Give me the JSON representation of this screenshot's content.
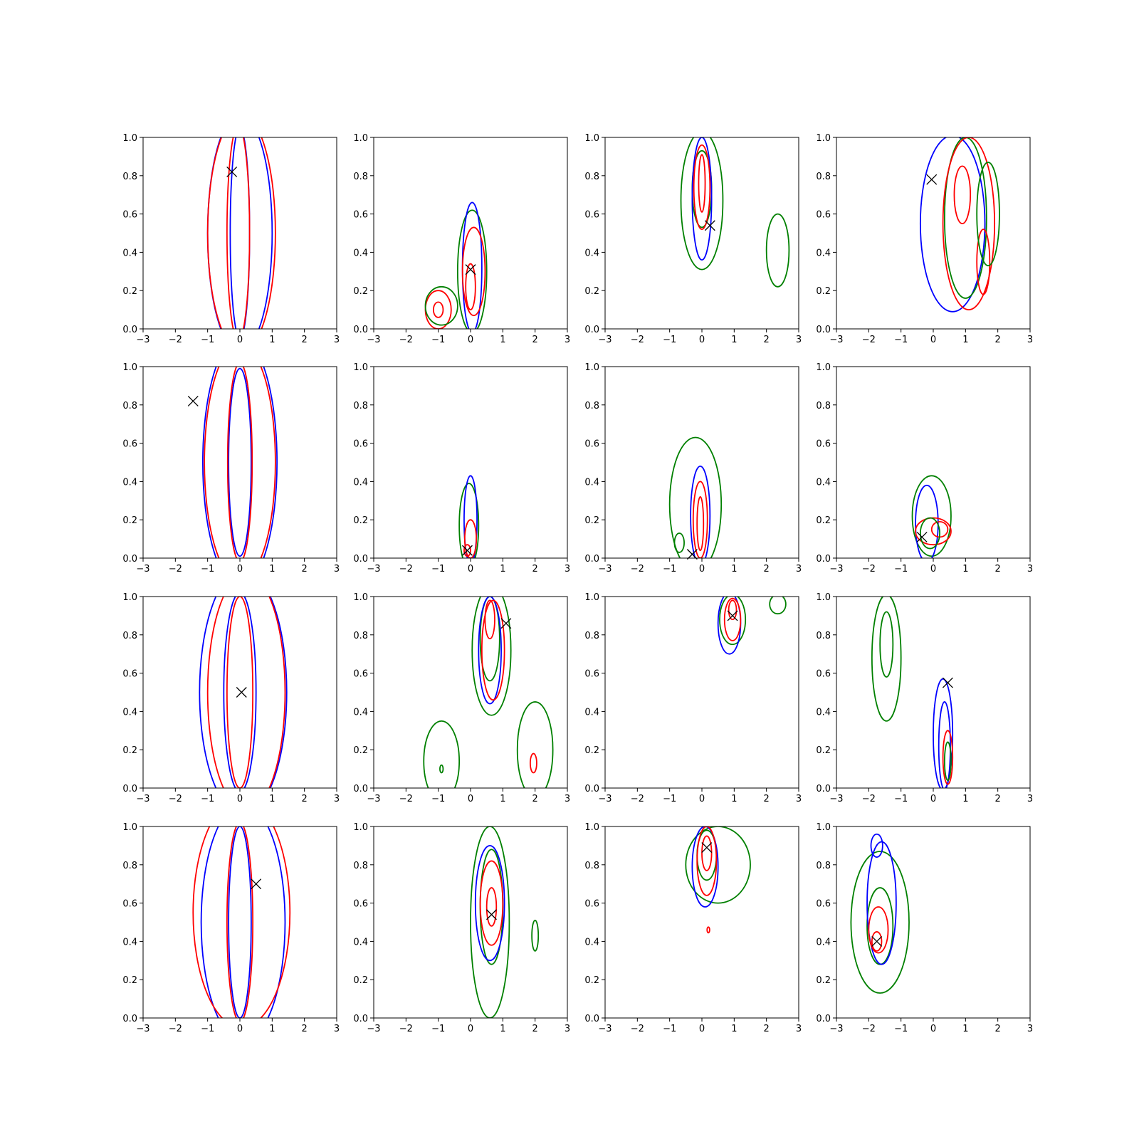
{
  "chart_data": {
    "type": "contour",
    "grid": {
      "rows": 4,
      "cols": 4
    },
    "shared_axes": {
      "xlim": [
        -3,
        3
      ],
      "ylim": [
        0,
        1
      ],
      "xticks": [
        "−3",
        "−2",
        "−1",
        "0",
        "1",
        "2",
        "3"
      ],
      "yticks": [
        "0.0",
        "0.2",
        "0.4",
        "0.6",
        "0.8",
        "1.0"
      ],
      "grid": false
    },
    "colors": {
      "series_a": "#0000ff",
      "series_b": "#ff0000",
      "series_c": "#008000",
      "marker": "#000000"
    },
    "panels": [
      {
        "row": 0,
        "col": 0,
        "marker": [
          -0.25,
          0.82
        ],
        "contours": [
          {
            "color": "series_a",
            "level": "outer",
            "cx": 0,
            "cy": 0.5,
            "rx": 1.0,
            "ry": 0.62
          },
          {
            "color": "series_a",
            "level": "inner",
            "cx": 0,
            "cy": 0.5,
            "rx": 0.3,
            "ry": 0.55
          },
          {
            "color": "series_b",
            "level": "outer",
            "cx": 0.05,
            "cy": 0.5,
            "rx": 1.05,
            "ry": 0.62
          },
          {
            "color": "series_b",
            "level": "inner",
            "cx": -0.05,
            "cy": 0.5,
            "rx": 0.35,
            "ry": 0.56
          }
        ]
      },
      {
        "row": 0,
        "col": 1,
        "marker": [
          0,
          0.31
        ],
        "contours": [
          {
            "color": "series_c",
            "level": "outer",
            "cx": 0.05,
            "cy": 0.3,
            "rx": 0.45,
            "ry": 0.32
          },
          {
            "color": "series_a",
            "level": "outer",
            "cx": 0.05,
            "cy": 0.32,
            "rx": 0.3,
            "ry": 0.34
          },
          {
            "color": "series_b",
            "level": "outer",
            "cx": 0.1,
            "cy": 0.3,
            "rx": 0.35,
            "ry": 0.23
          },
          {
            "color": "series_b",
            "level": "inner",
            "cx": 0.0,
            "cy": 0.22,
            "rx": 0.15,
            "ry": 0.12
          },
          {
            "color": "series_b",
            "level": "outer",
            "cx": -1.0,
            "cy": 0.1,
            "rx": 0.4,
            "ry": 0.1
          },
          {
            "color": "series_b",
            "level": "inner",
            "cx": -1.0,
            "cy": 0.1,
            "rx": 0.15,
            "ry": 0.04
          },
          {
            "color": "series_c",
            "level": "outer",
            "cx": -0.9,
            "cy": 0.12,
            "rx": 0.5,
            "ry": 0.1
          }
        ]
      },
      {
        "row": 0,
        "col": 2,
        "marker": [
          0.25,
          0.54
        ],
        "contours": [
          {
            "color": "series_c",
            "level": "outer",
            "cx": 0,
            "cy": 0.67,
            "rx": 0.65,
            "ry": 0.36
          },
          {
            "color": "series_c",
            "level": "inner",
            "cx": 0,
            "cy": 0.73,
            "rx": 0.3,
            "ry": 0.2
          },
          {
            "color": "series_a",
            "level": "outer",
            "cx": 0,
            "cy": 0.68,
            "rx": 0.3,
            "ry": 0.32
          },
          {
            "color": "series_b",
            "level": "outer",
            "cx": 0,
            "cy": 0.74,
            "rx": 0.25,
            "ry": 0.22
          },
          {
            "color": "series_b",
            "level": "inner",
            "cx": 0,
            "cy": 0.76,
            "rx": 0.1,
            "ry": 0.15
          },
          {
            "color": "series_c",
            "level": "outer",
            "cx": 2.35,
            "cy": 0.41,
            "rx": 0.35,
            "ry": 0.19
          }
        ]
      },
      {
        "row": 0,
        "col": 3,
        "marker": [
          -0.05,
          0.78
        ],
        "contours": [
          {
            "color": "series_a",
            "level": "outer",
            "cx": 0.6,
            "cy": 0.55,
            "rx": 1.0,
            "ry": 0.46
          },
          {
            "color": "series_c",
            "level": "outer",
            "cx": 1.0,
            "cy": 0.58,
            "rx": 0.65,
            "ry": 0.42
          },
          {
            "color": "series_b",
            "level": "outer",
            "cx": 1.1,
            "cy": 0.55,
            "rx": 0.8,
            "ry": 0.45
          },
          {
            "color": "series_b",
            "level": "inner",
            "cx": 1.55,
            "cy": 0.35,
            "rx": 0.2,
            "ry": 0.17
          },
          {
            "color": "series_c",
            "level": "inner",
            "cx": 1.7,
            "cy": 0.6,
            "rx": 0.35,
            "ry": 0.27
          },
          {
            "color": "series_b",
            "level": "inner",
            "cx": 0.9,
            "cy": 0.7,
            "rx": 0.25,
            "ry": 0.15
          }
        ]
      },
      {
        "row": 1,
        "col": 0,
        "marker": [
          -1.45,
          0.82
        ],
        "contours": [
          {
            "color": "series_a",
            "level": "outer",
            "cx": 0,
            "cy": 0.5,
            "rx": 1.15,
            "ry": 0.65
          },
          {
            "color": "series_a",
            "level": "inner",
            "cx": 0,
            "cy": 0.5,
            "rx": 0.35,
            "ry": 0.49
          },
          {
            "color": "series_b",
            "level": "outer",
            "cx": 0,
            "cy": 0.5,
            "rx": 1.1,
            "ry": 0.62
          },
          {
            "color": "series_b",
            "level": "inner",
            "cx": 0,
            "cy": 0.5,
            "rx": 0.38,
            "ry": 0.52
          }
        ]
      },
      {
        "row": 1,
        "col": 1,
        "marker": [
          -0.1,
          0.04
        ],
        "contours": [
          {
            "color": "series_c",
            "level": "outer",
            "cx": -0.05,
            "cy": 0.17,
            "rx": 0.3,
            "ry": 0.22
          },
          {
            "color": "series_a",
            "level": "outer",
            "cx": 0.0,
            "cy": 0.2,
            "rx": 0.2,
            "ry": 0.23
          },
          {
            "color": "series_b",
            "level": "outer",
            "cx": 0.0,
            "cy": 0.1,
            "rx": 0.18,
            "ry": 0.1
          },
          {
            "color": "series_b",
            "level": "inner",
            "cx": -0.1,
            "cy": 0.04,
            "rx": 0.1,
            "ry": 0.03
          }
        ]
      },
      {
        "row": 1,
        "col": 2,
        "marker": [
          -0.3,
          0.02
        ],
        "contours": [
          {
            "color": "series_c",
            "level": "outer",
            "cx": -0.2,
            "cy": 0.28,
            "rx": 0.8,
            "ry": 0.35
          },
          {
            "color": "series_a",
            "level": "outer",
            "cx": -0.05,
            "cy": 0.22,
            "rx": 0.3,
            "ry": 0.26
          },
          {
            "color": "series_b",
            "level": "outer",
            "cx": -0.05,
            "cy": 0.2,
            "rx": 0.22,
            "ry": 0.2
          },
          {
            "color": "series_b",
            "level": "inner",
            "cx": -0.05,
            "cy": 0.18,
            "rx": 0.1,
            "ry": 0.14
          },
          {
            "color": "series_c",
            "level": "inner",
            "cx": -0.7,
            "cy": 0.08,
            "rx": 0.15,
            "ry": 0.05
          }
        ]
      },
      {
        "row": 1,
        "col": 3,
        "marker": [
          -0.35,
          0.11
        ],
        "contours": [
          {
            "color": "series_c",
            "level": "outer",
            "cx": -0.05,
            "cy": 0.22,
            "rx": 0.6,
            "ry": 0.21
          },
          {
            "color": "series_a",
            "level": "outer",
            "cx": -0.2,
            "cy": 0.18,
            "rx": 0.35,
            "ry": 0.2
          },
          {
            "color": "series_b",
            "level": "outer",
            "cx": 0.0,
            "cy": 0.14,
            "rx": 0.55,
            "ry": 0.07
          },
          {
            "color": "series_b",
            "level": "inner",
            "cx": 0.2,
            "cy": 0.15,
            "rx": 0.25,
            "ry": 0.04
          },
          {
            "color": "series_c",
            "level": "inner",
            "cx": -0.1,
            "cy": 0.13,
            "rx": 0.3,
            "ry": 0.08
          }
        ]
      },
      {
        "row": 2,
        "col": 0,
        "marker": [
          0.05,
          0.5
        ],
        "contours": [
          {
            "color": "series_a",
            "level": "outer",
            "cx": 0.1,
            "cy": 0.5,
            "rx": 1.35,
            "ry": 0.64
          },
          {
            "color": "series_a",
            "level": "inner",
            "cx": 0,
            "cy": 0.5,
            "rx": 0.5,
            "ry": 0.52
          },
          {
            "color": "series_b",
            "level": "outer",
            "cx": 0.2,
            "cy": 0.5,
            "rx": 1.2,
            "ry": 0.62
          },
          {
            "color": "series_b",
            "level": "inner",
            "cx": 0,
            "cy": 0.5,
            "rx": 0.4,
            "ry": 0.5
          }
        ]
      },
      {
        "row": 2,
        "col": 1,
        "marker": [
          1.1,
          0.86
        ],
        "contours": [
          {
            "color": "series_c",
            "level": "outer",
            "cx": 0.65,
            "cy": 0.72,
            "rx": 0.6,
            "ry": 0.34
          },
          {
            "color": "series_c",
            "level": "inner",
            "cx": 0.6,
            "cy": 0.78,
            "rx": 0.3,
            "ry": 0.22
          },
          {
            "color": "series_a",
            "level": "outer",
            "cx": 0.6,
            "cy": 0.72,
            "rx": 0.35,
            "ry": 0.28
          },
          {
            "color": "series_b",
            "level": "outer",
            "cx": 0.7,
            "cy": 0.72,
            "rx": 0.35,
            "ry": 0.26
          },
          {
            "color": "series_b",
            "level": "inner",
            "cx": 0.6,
            "cy": 0.88,
            "rx": 0.15,
            "ry": 0.1
          },
          {
            "color": "series_c",
            "level": "outer",
            "cx": -0.9,
            "cy": 0.14,
            "rx": 0.55,
            "ry": 0.21
          },
          {
            "color": "series_c",
            "level": "inner",
            "cx": -0.9,
            "cy": 0.1,
            "rx": 0.05,
            "ry": 0.02
          },
          {
            "color": "series_c",
            "level": "outer",
            "cx": 2.0,
            "cy": 0.2,
            "rx": 0.55,
            "ry": 0.25
          },
          {
            "color": "series_b",
            "level": "inner",
            "cx": 1.95,
            "cy": 0.13,
            "rx": 0.1,
            "ry": 0.05
          }
        ]
      },
      {
        "row": 2,
        "col": 2,
        "marker": [
          0.95,
          0.9
        ],
        "contours": [
          {
            "color": "series_c",
            "level": "outer",
            "cx": 0.95,
            "cy": 0.88,
            "rx": 0.4,
            "ry": 0.13
          },
          {
            "color": "series_a",
            "level": "outer",
            "cx": 0.85,
            "cy": 0.86,
            "rx": 0.35,
            "ry": 0.16
          },
          {
            "color": "series_b",
            "level": "outer",
            "cx": 0.95,
            "cy": 0.88,
            "rx": 0.25,
            "ry": 0.11
          },
          {
            "color": "series_b",
            "level": "inner",
            "cx": 0.95,
            "cy": 0.93,
            "rx": 0.12,
            "ry": 0.05
          },
          {
            "color": "series_c",
            "level": "outer",
            "cx": 2.35,
            "cy": 0.96,
            "rx": 0.25,
            "ry": 0.05
          }
        ]
      },
      {
        "row": 2,
        "col": 3,
        "marker": [
          0.45,
          0.55
        ],
        "contours": [
          {
            "color": "series_c",
            "level": "outer",
            "cx": -1.45,
            "cy": 0.68,
            "rx": 0.45,
            "ry": 0.33
          },
          {
            "color": "series_c",
            "level": "inner",
            "cx": -1.45,
            "cy": 0.75,
            "rx": 0.2,
            "ry": 0.17
          },
          {
            "color": "series_a",
            "level": "outer",
            "cx": 0.3,
            "cy": 0.28,
            "rx": 0.3,
            "ry": 0.29
          },
          {
            "color": "series_a",
            "level": "inner",
            "cx": 0.35,
            "cy": 0.22,
            "rx": 0.18,
            "ry": 0.23
          },
          {
            "color": "series_b",
            "level": "outer",
            "cx": 0.45,
            "cy": 0.16,
            "rx": 0.15,
            "ry": 0.14
          },
          {
            "color": "series_c",
            "level": "inner",
            "cx": 0.45,
            "cy": 0.14,
            "rx": 0.1,
            "ry": 0.1
          }
        ]
      },
      {
        "row": 3,
        "col": 0,
        "marker": [
          0.5,
          0.7
        ],
        "contours": [
          {
            "color": "series_a",
            "level": "outer",
            "cx": 0.1,
            "cy": 0.5,
            "rx": 1.3,
            "ry": 0.62
          },
          {
            "color": "series_a",
            "level": "inner",
            "cx": 0,
            "cy": 0.5,
            "rx": 0.35,
            "ry": 0.5
          },
          {
            "color": "series_b",
            "level": "outer",
            "cx": 0.05,
            "cy": 0.55,
            "rx": 1.5,
            "ry": 0.6
          },
          {
            "color": "series_b",
            "level": "inner",
            "cx": 0,
            "cy": 0.5,
            "rx": 0.4,
            "ry": 0.52
          }
        ]
      },
      {
        "row": 3,
        "col": 1,
        "marker": [
          0.65,
          0.54
        ],
        "contours": [
          {
            "color": "series_c",
            "level": "outer",
            "cx": 0.6,
            "cy": 0.5,
            "rx": 0.6,
            "ry": 0.5
          },
          {
            "color": "series_c",
            "level": "inner",
            "cx": 0.65,
            "cy": 0.58,
            "rx": 0.35,
            "ry": 0.3
          },
          {
            "color": "series_a",
            "level": "outer",
            "cx": 0.6,
            "cy": 0.6,
            "rx": 0.45,
            "ry": 0.3
          },
          {
            "color": "series_b",
            "level": "outer",
            "cx": 0.65,
            "cy": 0.6,
            "rx": 0.35,
            "ry": 0.22
          },
          {
            "color": "series_b",
            "level": "inner",
            "cx": 0.65,
            "cy": 0.58,
            "rx": 0.15,
            "ry": 0.1
          },
          {
            "color": "series_c",
            "level": "outer",
            "cx": 2.0,
            "cy": 0.43,
            "rx": 0.1,
            "ry": 0.08
          }
        ]
      },
      {
        "row": 3,
        "col": 2,
        "marker": [
          0.15,
          0.89
        ],
        "contours": [
          {
            "color": "series_c",
            "level": "outer",
            "cx": 0.5,
            "cy": 0.8,
            "rx": 1.0,
            "ry": 0.2
          },
          {
            "color": "series_c",
            "level": "inner",
            "cx": 0.15,
            "cy": 0.85,
            "rx": 0.3,
            "ry": 0.13
          },
          {
            "color": "series_a",
            "level": "outer",
            "cx": 0.1,
            "cy": 0.79,
            "rx": 0.4,
            "ry": 0.21
          },
          {
            "color": "series_b",
            "level": "outer",
            "cx": 0.15,
            "cy": 0.82,
            "rx": 0.3,
            "ry": 0.18
          },
          {
            "color": "series_b",
            "level": "inner",
            "cx": 0.15,
            "cy": 0.86,
            "rx": 0.15,
            "ry": 0.09
          },
          {
            "color": "series_b",
            "level": "inner",
            "cx": 0.2,
            "cy": 0.46,
            "rx": 0.04,
            "ry": 0.015
          }
        ]
      },
      {
        "row": 3,
        "col": 3,
        "marker": [
          -1.75,
          0.4
        ],
        "contours": [
          {
            "color": "series_c",
            "level": "outer",
            "cx": -1.65,
            "cy": 0.5,
            "rx": 0.9,
            "ry": 0.37
          },
          {
            "color": "series_c",
            "level": "inner",
            "cx": -1.65,
            "cy": 0.48,
            "rx": 0.4,
            "ry": 0.2
          },
          {
            "color": "series_a",
            "level": "outer",
            "cx": -1.6,
            "cy": 0.6,
            "rx": 0.45,
            "ry": 0.32
          },
          {
            "color": "series_a",
            "level": "inner",
            "cx": -1.75,
            "cy": 0.9,
            "rx": 0.18,
            "ry": 0.06
          },
          {
            "color": "series_b",
            "level": "outer",
            "cx": -1.7,
            "cy": 0.46,
            "rx": 0.3,
            "ry": 0.12
          },
          {
            "color": "series_b",
            "level": "inner",
            "cx": -1.75,
            "cy": 0.4,
            "rx": 0.15,
            "ry": 0.05
          }
        ]
      }
    ]
  }
}
